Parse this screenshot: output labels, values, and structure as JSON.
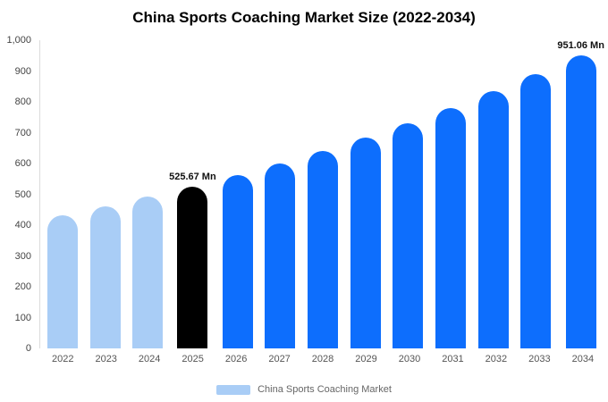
{
  "title": "China Sports Coaching Market Size (2022-2034)",
  "legend": {
    "label": "China Sports Coaching Market"
  },
  "chart_data": {
    "type": "bar",
    "title": "China Sports Coaching Market Size (2022-2034)",
    "unit": "Mn",
    "categories": [
      "2022",
      "2023",
      "2024",
      "2025",
      "2026",
      "2027",
      "2028",
      "2029",
      "2030",
      "2031",
      "2032",
      "2033",
      "2034"
    ],
    "values": [
      431.4,
      460.8,
      492.2,
      525.67,
      561.5,
      599.7,
      640.5,
      684.1,
      730.7,
      780.4,
      833.5,
      890.3,
      951.06
    ],
    "bar_styles": [
      "light",
      "light",
      "light",
      "highlight",
      "primary",
      "primary",
      "primary",
      "primary",
      "primary",
      "primary",
      "primary",
      "primary",
      "primary"
    ],
    "colors": {
      "light": "#a9cdf6",
      "primary": "#0d6efd",
      "highlight": "#000000"
    },
    "ylim": [
      0,
      1000
    ],
    "yticks": [
      "0",
      "100",
      "200",
      "300",
      "400",
      "500",
      "600",
      "700",
      "800",
      "900",
      "1,000"
    ],
    "annotations": [
      {
        "category": "2025",
        "text": "525.67 Mn"
      },
      {
        "category": "2034",
        "text": "951.06 Mn"
      }
    ],
    "xlabel": "",
    "ylabel": "",
    "grid": false,
    "legend_position": "bottom"
  }
}
